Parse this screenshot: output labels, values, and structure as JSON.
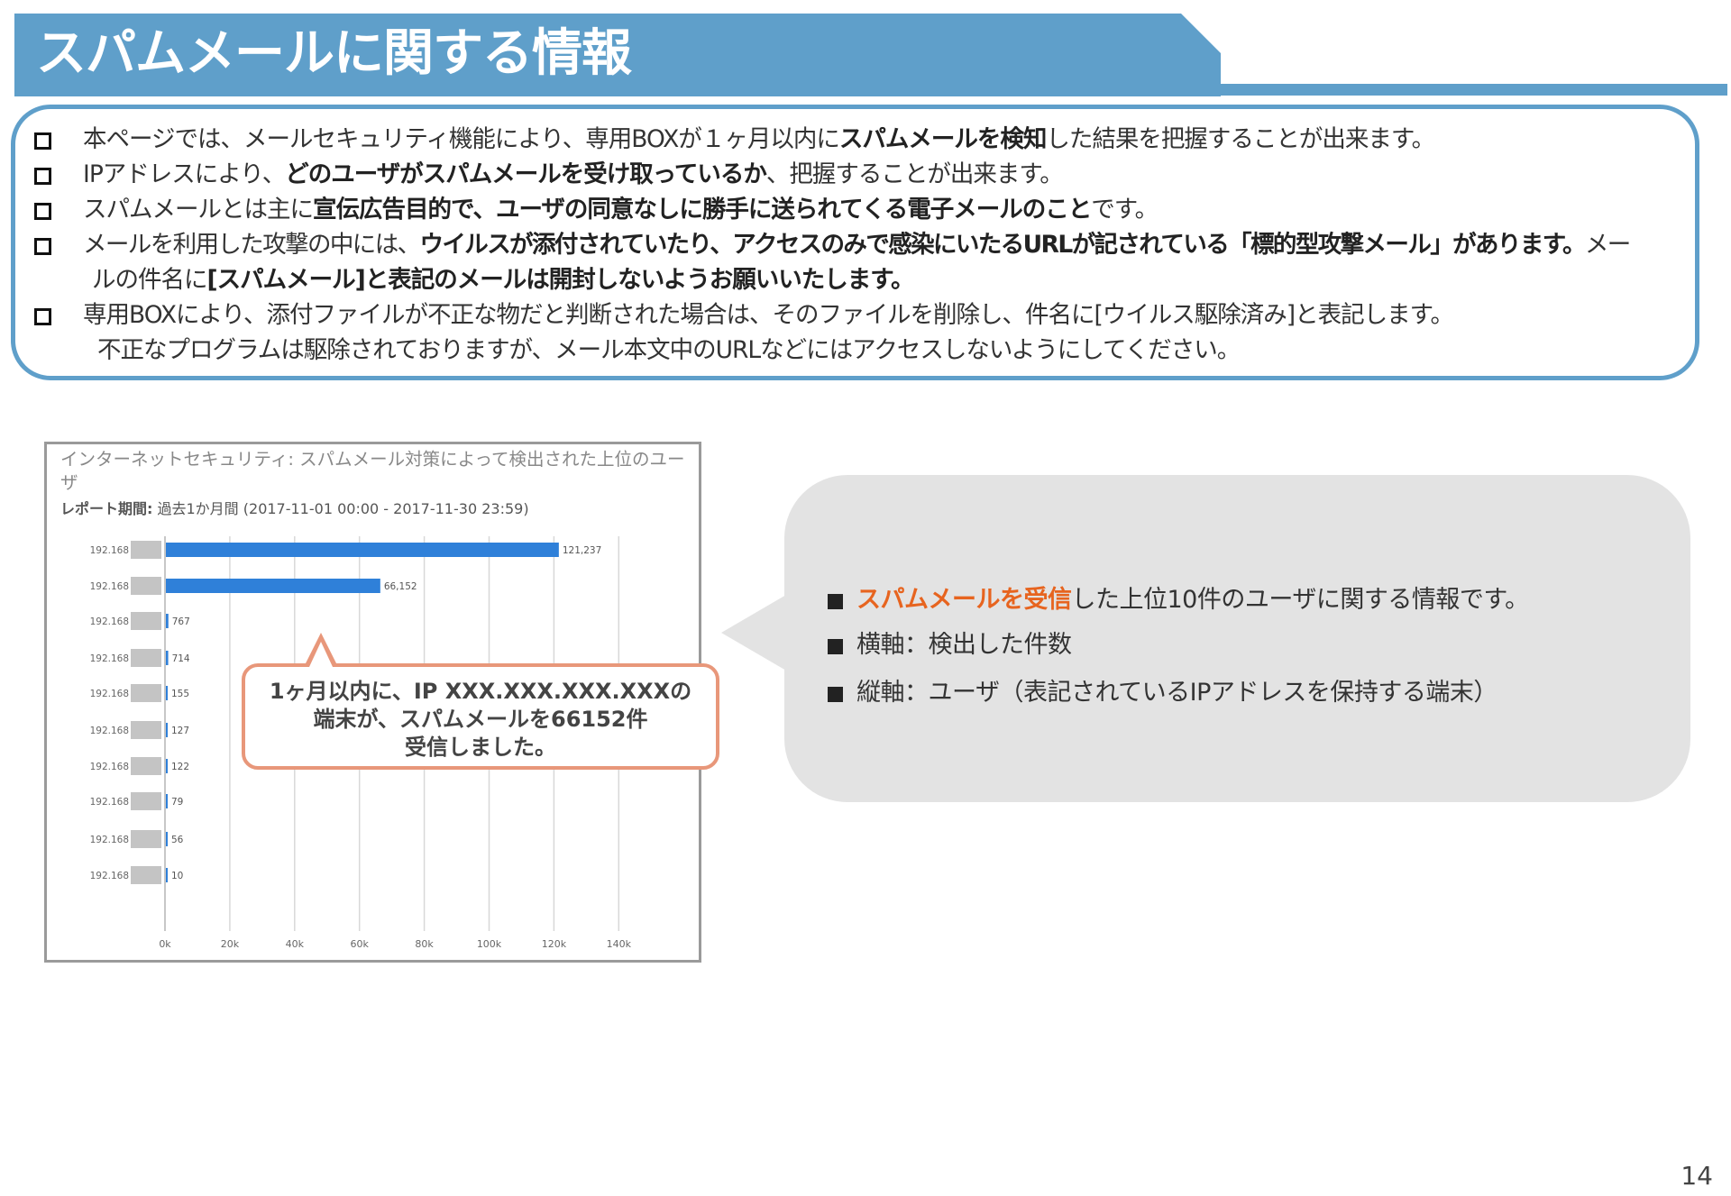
{
  "title": "スパムメールに関する情報",
  "info": {
    "item1": {
      "pre": "本ページでは、メールセキュリティ機能により、専用BOXが１ヶ月以内に",
      "bold": "スパムメールを検知",
      "post": "した結果を把握することが出来ます。"
    },
    "item2": {
      "pre": "IPアドレスにより、",
      "bold": "どのユーザがスパムメールを受け取っているか",
      "post": "、把握することが出来ます。"
    },
    "item3": {
      "pre": "スパムメールとは主に",
      "bold": "宣伝広告目的で、ユーザの同意なしに勝手に送られてくる電子メールのこと",
      "post": "です。"
    },
    "item4": {
      "pre": "メールを利用した攻撃の中には、",
      "bold": "ウイルスが添付されていたり、アクセスのみで感染にいたるURLが記されている「標的型攻撃メール」があります。",
      "post": "メー",
      "line2_pre": "ルの件名に",
      "line2_bold": "[スパムメール]と表記のメールは開封しないようお願いいたします。"
    },
    "item5": {
      "text": "専用BOXにより、添付ファイルが不正な物だと判断された場合は、そのファイルを削除し、件名に[ウイルス駆除済み]と表記します。",
      "line2": "不正なプログラムは駆除されておりますが、メール本文中のURLなどにはアクセスしないようにしてください。"
    }
  },
  "chart_panel": {
    "title": "インターネットセキュリティ: スパムメール対策によって検出された上位のユーザ",
    "period_label": "レポート期間:",
    "period_value": "過去1か月間 (2017-11-01 00:00 - 2017-11-30 23:59)"
  },
  "chart_data": {
    "type": "bar",
    "orientation": "horizontal",
    "title": "インターネットセキュリティ: スパムメール対策によって検出された上位のユーザ",
    "categories": [
      "192.168",
      "192.168",
      "192.168",
      "192.168",
      "192.168",
      "192.168",
      "192.168",
      "192.168",
      "192.168",
      "192.168"
    ],
    "values": [
      121237,
      66152,
      767,
      714,
      155,
      127,
      122,
      79,
      56,
      10
    ],
    "value_labels": [
      "121,237",
      "66,152",
      "767",
      "714",
      "155",
      "127",
      "122",
      "79",
      "56",
      "10"
    ],
    "xlim": [
      0,
      140000
    ],
    "xticks": [
      "0k",
      "20k",
      "40k",
      "60k",
      "80k",
      "100k",
      "120k",
      "140k"
    ],
    "grid": true,
    "bar_color": "#2f80d9"
  },
  "callout": {
    "line1": "1ヶ月以内に、IP XXX.XXX.XXX.XXXの",
    "line2": "端末が、スパムメールを66152件",
    "line3": "受信しました。"
  },
  "bubble": {
    "bullet1_accent": "スパムメールを受信",
    "bullet1_rest": "した上位10件のユーザに関する情報です。",
    "bullet2": "横軸：検出した件数",
    "bullet3": "縦軸：ユーザ（表記されているIPアドレスを保持する端末）"
  },
  "colors": {
    "header": "#5f9fca",
    "accent": "#e7641f",
    "callout_border": "#e8977a",
    "bubble": "#e3e3e3"
  },
  "page_number": "14"
}
